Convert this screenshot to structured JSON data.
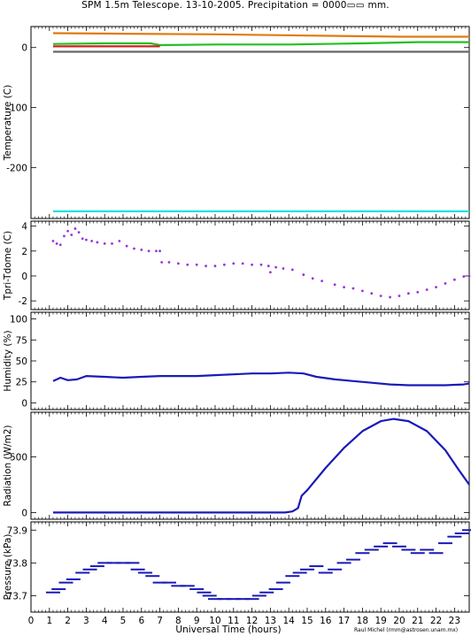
{
  "title": "SPM 1.5m Telescope. 13-10-2005. Precipitation = 0000▭▭ mm.",
  "xlabel": "Universal Time (hours)",
  "credit": "Raul Michel (rmm@astrosen.unam.mx)",
  "x_ticks": [
    0,
    1,
    2,
    3,
    4,
    5,
    6,
    7,
    8,
    9,
    10,
    11,
    12,
    13,
    14,
    15,
    16,
    17,
    18,
    19,
    20,
    21,
    22,
    23
  ],
  "colors": {
    "orange": "#e07a10",
    "green": "#22c022",
    "red": "#d02020",
    "gray": "#666666",
    "cyan": "#22e0e0",
    "purple": "#9933dd",
    "blue": "#1a1ab8"
  },
  "chart_data": [
    {
      "type": "line",
      "ylabel": "Temperature (C)",
      "ylim": [
        -285,
        35
      ],
      "yticks": [
        0,
        -100,
        -200
      ],
      "xlim": [
        0,
        23.8
      ],
      "series": [
        {
          "color": "orange",
          "x": [
            1.2,
            5,
            10,
            15,
            20,
            23.8
          ],
          "y": [
            24,
            23,
            22,
            20,
            18,
            18
          ]
        },
        {
          "color": "green",
          "x": [
            1.2,
            4,
            6.5,
            7,
            10,
            14,
            18,
            21,
            23.8
          ],
          "y": [
            6,
            7,
            7,
            4,
            5,
            5,
            7,
            9,
            9
          ]
        },
        {
          "color": "red",
          "x": [
            1.2,
            7
          ],
          "y": [
            2,
            2
          ]
        },
        {
          "color": "gray",
          "x": [
            1.2,
            23.8
          ],
          "y": [
            -7,
            -7
          ]
        },
        {
          "color": "cyan",
          "x": [
            1.2,
            23.8
          ],
          "y": [
            -273,
            -273
          ]
        }
      ]
    },
    {
      "type": "scatter",
      "ylabel": "Tpri-Tdome (C)",
      "ylim": [
        -2.7,
        4.4
      ],
      "yticks": [
        4,
        2,
        0,
        -2
      ],
      "xlim": [
        0,
        23.8
      ],
      "series": [
        {
          "color": "purple",
          "x": [
            1.2,
            1.4,
            1.6,
            1.8,
            2.0,
            2.2,
            2.4,
            2.6,
            2.8,
            3.0,
            3.3,
            3.6,
            4.0,
            4.4,
            4.8,
            5.2,
            5.6,
            6.0,
            6.4,
            6.8,
            7.0,
            7.1,
            7.5,
            8.0,
            8.5,
            9.0,
            9.5,
            10.0,
            10.5,
            11.0,
            11.5,
            12.0,
            12.5,
            12.9,
            13.0,
            13.3,
            13.7,
            14.2,
            14.8,
            15.3,
            15.8,
            16.5,
            17.0,
            17.5,
            18.0,
            18.5,
            19.0,
            19.5,
            20.0,
            20.5,
            21.0,
            21.5,
            22.0,
            22.5,
            23.0,
            23.5,
            23.8
          ],
          "y": [
            2.8,
            2.6,
            2.5,
            3.2,
            3.6,
            3.3,
            3.8,
            3.5,
            3.0,
            2.9,
            2.8,
            2.7,
            2.6,
            2.6,
            2.8,
            2.4,
            2.2,
            2.1,
            2.0,
            2.0,
            2.0,
            1.1,
            1.1,
            1.0,
            0.9,
            0.9,
            0.8,
            0.8,
            0.9,
            1.0,
            1.0,
            0.9,
            0.9,
            0.8,
            0.3,
            0.7,
            0.6,
            0.5,
            0.1,
            -0.2,
            -0.4,
            -0.7,
            -0.9,
            -1.0,
            -1.2,
            -1.4,
            -1.6,
            -1.7,
            -1.6,
            -1.4,
            -1.3,
            -1.1,
            -0.9,
            -0.6,
            -0.3,
            -0.05,
            0.0
          ]
        }
      ]
    },
    {
      "type": "line",
      "ylabel": "Humidity (%)",
      "ylim": [
        -8,
        108
      ],
      "yticks": [
        100,
        75,
        50,
        25,
        0
      ],
      "xlim": [
        0,
        23.8
      ],
      "series": [
        {
          "color": "blue",
          "x": [
            1.2,
            1.6,
            2.0,
            2.5,
            3.0,
            4.0,
            5.0,
            6.0,
            7.0,
            8.0,
            9.0,
            10.0,
            11.0,
            12.0,
            13.0,
            14.0,
            14.8,
            15.5,
            16.5,
            17.5,
            18.5,
            19.5,
            20.5,
            21.5,
            22.5,
            23.5,
            23.8
          ],
          "y": [
            26,
            30,
            27,
            28,
            32,
            31,
            30,
            31,
            32,
            32,
            32,
            33,
            34,
            35,
            35,
            36,
            35,
            31,
            28,
            26,
            24,
            22,
            21,
            21,
            21,
            22,
            23
          ]
        }
      ]
    },
    {
      "type": "line",
      "ylabel": "Radiation (W/m2)",
      "ylim": [
        -60,
        900
      ],
      "yticks": [
        500,
        0
      ],
      "xlim": [
        0,
        23.8
      ],
      "series": [
        {
          "color": "blue",
          "x": [
            1.2,
            5,
            10,
            13.8,
            14.2,
            14.5,
            14.7,
            15,
            16,
            17,
            18,
            19,
            19.7,
            20.5,
            21.5,
            22.5,
            23.2,
            23.8
          ],
          "y": [
            0,
            0,
            0,
            0,
            10,
            40,
            150,
            200,
            400,
            580,
            730,
            820,
            840,
            820,
            730,
            560,
            390,
            250
          ]
        }
      ]
    },
    {
      "type": "scatter",
      "ylabel": "Pressure (kPa)",
      "ylim": [
        73.65,
        73.925
      ],
      "yticks": [
        73.9,
        73.8,
        73.7
      ],
      "xlim": [
        0,
        23.8
      ],
      "series": [
        {
          "color": "blue",
          "x": [
            1.2,
            1.5,
            1.9,
            2.3,
            2.8,
            3.2,
            3.6,
            4.0,
            4.5,
            5.0,
            5.5,
            5.8,
            6.2,
            6.6,
            7.0,
            7.5,
            8.0,
            8.5,
            9.0,
            9.4,
            9.7,
            10.0,
            10.5,
            11.0,
            11.5,
            12.0,
            12.4,
            12.8,
            13.3,
            13.7,
            14.2,
            14.6,
            15.0,
            15.5,
            16.0,
            16.5,
            17.0,
            17.5,
            18.0,
            18.5,
            19.0,
            19.5,
            20.0,
            20.5,
            21.0,
            21.5,
            22.0,
            22.5,
            23.0,
            23.4,
            23.8
          ],
          "y": [
            73.71,
            73.72,
            73.74,
            73.75,
            73.77,
            73.78,
            73.79,
            73.8,
            73.8,
            73.8,
            73.8,
            73.78,
            73.77,
            73.76,
            73.74,
            73.74,
            73.73,
            73.73,
            73.72,
            73.71,
            73.7,
            73.69,
            73.69,
            73.69,
            73.69,
            73.69,
            73.7,
            73.71,
            73.72,
            73.74,
            73.76,
            73.77,
            73.78,
            73.79,
            73.77,
            73.78,
            73.8,
            73.81,
            73.83,
            73.84,
            73.85,
            73.86,
            73.85,
            73.84,
            73.83,
            73.84,
            73.83,
            73.86,
            73.88,
            73.89,
            73.9
          ]
        }
      ]
    }
  ]
}
